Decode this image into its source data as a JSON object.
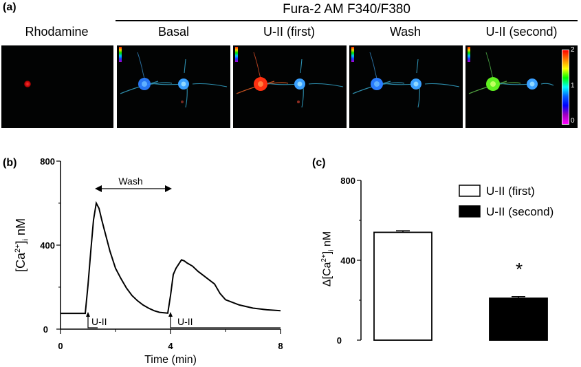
{
  "panel_a": {
    "label": "(a)",
    "group_title": "Fura-2 AM F340/F380",
    "columns": [
      "Rhodamine",
      "Basal",
      "U-II (first)",
      "Wash",
      "U-II (second)"
    ],
    "colorbar_ticks": [
      "2",
      "1",
      "0"
    ],
    "colors": {
      "rhodamine": "#e01010",
      "basal_cell": "#2a7cff",
      "first_cell": "#ff3010",
      "second_cell": "#60f020",
      "neighbor_cell": "#3aa0ff"
    }
  },
  "panel_b": {
    "label": "(b)",
    "ylabel_main": "[Ca",
    "ylabel_sup": "2+",
    "ylabel_close": "]",
    "ylabel_sub": "i",
    "ylabel_unit": " nM",
    "xlabel": "Time (min)",
    "wash_label": "Wash",
    "stim1_label": "U-II",
    "stim2_label": "U-II",
    "xticks": [
      "0",
      "4",
      "8"
    ],
    "yticks": [
      "0",
      "400",
      "800"
    ]
  },
  "panel_c": {
    "label": "(c)",
    "ylabel_prefix": "Δ[Ca",
    "ylabel_sup": "2+",
    "ylabel_close": "]",
    "ylabel_sub": "i",
    "ylabel_unit": " nM",
    "yticks": [
      "0",
      "400",
      "800"
    ],
    "significance": "*"
  },
  "chart_data": [
    {
      "type": "line",
      "panel": "(b)",
      "xlabel": "Time (min)",
      "ylabel": "[Ca2+]i nM",
      "xlim": [
        0,
        8
      ],
      "ylim": [
        0,
        800
      ],
      "x": [
        0,
        0.5,
        0.9,
        1.0,
        1.1,
        1.2,
        1.3,
        1.4,
        1.5,
        1.6,
        1.8,
        2.0,
        2.2,
        2.4,
        2.6,
        2.8,
        3.0,
        3.2,
        3.4,
        3.6,
        3.9,
        4.0,
        4.1,
        4.2,
        4.3,
        4.4,
        4.5,
        4.6,
        4.8,
        5.0,
        5.2,
        5.4,
        5.6,
        5.8,
        6.0,
        6.5,
        7.0,
        7.5,
        8.0
      ],
      "y": [
        75,
        75,
        75,
        210,
        370,
        520,
        600,
        575,
        520,
        470,
        370,
        290,
        240,
        195,
        160,
        135,
        115,
        100,
        88,
        80,
        76,
        160,
        260,
        290,
        310,
        330,
        325,
        315,
        300,
        275,
        255,
        235,
        215,
        170,
        140,
        115,
        100,
        92,
        88
      ],
      "annotations": [
        {
          "text": "Wash",
          "x_start": 1.3,
          "x_end": 4.0
        },
        {
          "text": "U-II",
          "x": 1.0
        },
        {
          "text": "U-II",
          "x": 4.0
        }
      ]
    },
    {
      "type": "bar",
      "panel": "(c)",
      "ylabel": "Δ[Ca2+]i nM",
      "ylim": [
        0,
        800
      ],
      "categories": [
        "U-II (first)",
        "U-II (second)"
      ],
      "series": [
        {
          "name": "",
          "values": [
            540,
            210
          ]
        }
      ],
      "errors": [
        8,
        8
      ],
      "fills": [
        "#ffffff",
        "#000000"
      ],
      "legend": [
        "U-II (first)",
        "U-II (second)"
      ],
      "legend_position": "top-right"
    }
  ]
}
